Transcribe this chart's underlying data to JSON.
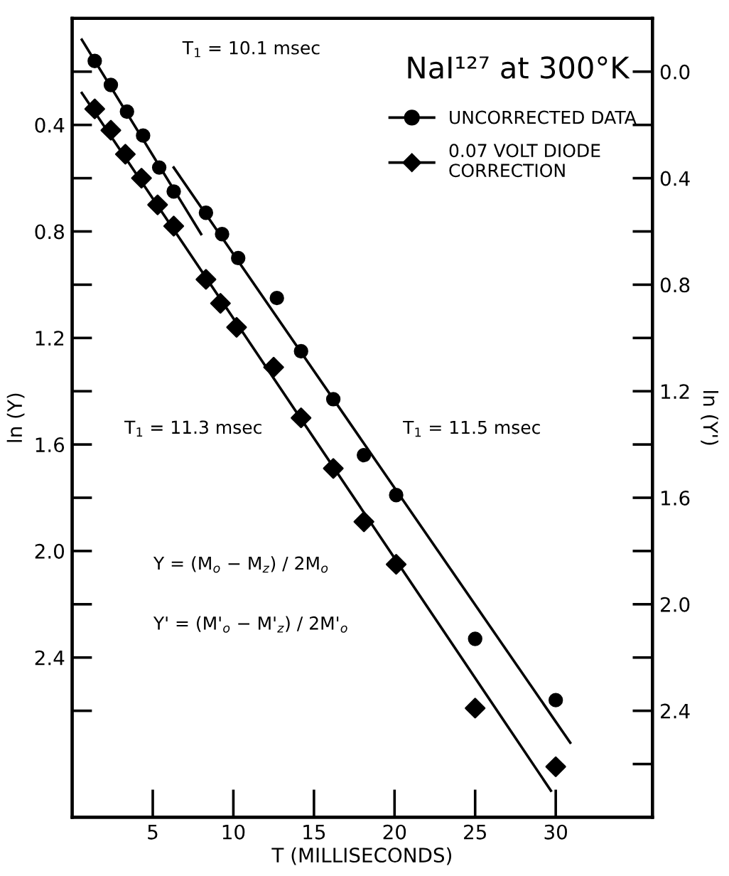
{
  "chart_data": {
    "type": "scatter",
    "title": "NaI¹²⁷ at 300°K",
    "xlabel": "T (MILLISECONDS)",
    "ylabel": "ln (Y)",
    "y2label": "ln (Y')",
    "xlim": [
      0,
      36
    ],
    "xticks": [
      5,
      10,
      15,
      20,
      25,
      30
    ],
    "ylim": [
      3.0,
      0.0
    ],
    "yticks": [
      {
        "value": 0.2,
        "label": null
      },
      0.4,
      {
        "value": 0.6,
        "label": null
      },
      0.8,
      {
        "value": 1.0,
        "label": null
      },
      1.2,
      {
        "value": 1.4,
        "label": null
      },
      1.6,
      {
        "value": 1.8,
        "label": null
      },
      {
        "value": 2.0,
        "label": "2.0"
      },
      {
        "value": 2.2,
        "label": null
      },
      2.4,
      {
        "value": 2.6,
        "label": null
      }
    ],
    "y2lim": [
      2.8,
      -0.2
    ],
    "y2ticks": [
      {
        "value": 0.0,
        "label": "0.0"
      },
      {
        "value": 0.2,
        "label": null
      },
      0.4,
      {
        "value": 0.6,
        "label": null
      },
      0.8,
      {
        "value": 1.0,
        "label": null
      },
      1.2,
      {
        "value": 1.4,
        "label": null
      },
      1.6,
      {
        "value": 1.8,
        "label": null
      },
      {
        "value": 2.0,
        "label": "2.0"
      },
      {
        "value": 2.2,
        "label": null
      },
      2.4,
      {
        "value": 2.6,
        "label": null
      }
    ],
    "grid": false,
    "legend": "top right",
    "series": [
      {
        "name": "UNCORRECTED DATA",
        "type": "scatter",
        "marker": "circle",
        "color": "#000000",
        "x": [
          1.4,
          2.4,
          3.4,
          4.4,
          5.4,
          6.3,
          8.3,
          9.3,
          10.3,
          12.7,
          14.2,
          16.2,
          18.1,
          20.1,
          25.0,
          30.0
        ],
        "values": [
          0.16,
          0.25,
          0.35,
          0.44,
          0.56,
          0.65,
          0.73,
          0.81,
          0.9,
          1.05,
          1.25,
          1.43,
          1.64,
          1.79,
          2.33,
          2.56
        ]
      },
      {
        "name": "0.07 VOLT DIODE\nCORRECTION",
        "type": "scatter",
        "marker": "diamond",
        "axis": "y2",
        "color": "#000000",
        "x": [
          1.4,
          2.4,
          3.3,
          4.3,
          5.3,
          6.3,
          8.3,
          9.2,
          10.2,
          12.5,
          14.2,
          16.2,
          18.1,
          20.1,
          25.0,
          30.0
        ],
        "values": [
          0.14,
          0.22,
          0.31,
          0.4,
          0.5,
          0.58,
          0.78,
          0.87,
          0.96,
          1.11,
          1.3,
          1.49,
          1.69,
          1.85,
          2.39,
          2.61
        ]
      },
      {
        "type": "line",
        "marker": "none",
        "color": "#000000",
        "x": [
          0.6,
          8.0
        ],
        "values": [
          0.08,
          0.81
        ]
      },
      {
        "type": "line",
        "marker": "none",
        "color": "#000000",
        "x": [
          6.3,
          30.9
        ],
        "values": [
          0.56,
          2.72
        ]
      },
      {
        "type": "line",
        "marker": "none",
        "axis": "y2",
        "color": "#000000",
        "x": [
          0.6,
          29.7
        ],
        "values": [
          0.08,
          2.7
        ]
      }
    ],
    "annotations": [
      "T$_{1}$ = 10.1 msec",
      "T$_{1}$ = 11.3 msec",
      "T$_{1}$ = 11.5 msec",
      "Y = (M$_{o}$ − M$_{z}$) / 2M$_{o}$",
      "Y' = (M'$_{o}$ − M'$_{z}$) / 2M'$_{o}$"
    ]
  }
}
